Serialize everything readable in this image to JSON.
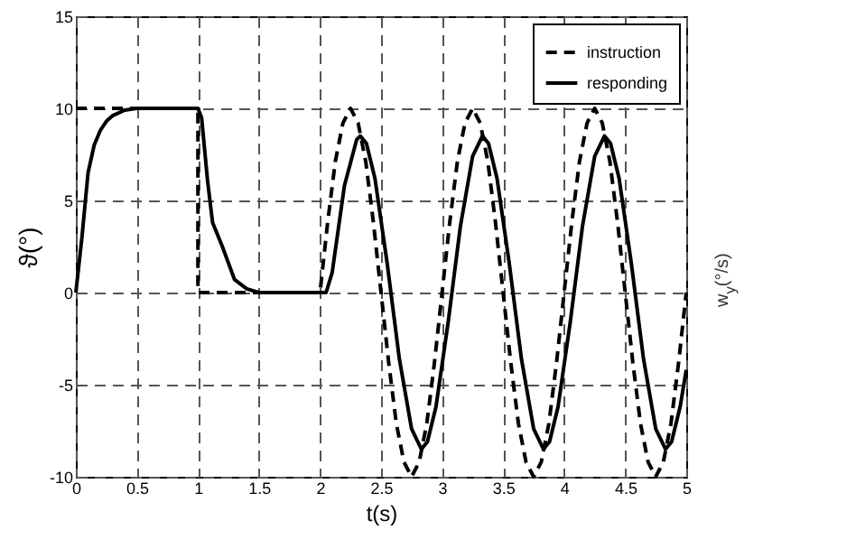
{
  "chart_data": {
    "type": "line",
    "xlabel": "t(s)",
    "ylabel": "ϑ(°)",
    "annotations": [
      "w$_{y}$(°/s)"
    ],
    "xlim": [
      0,
      5
    ],
    "xticks": [
      0,
      0.5,
      1,
      1.5,
      2,
      2.5,
      3,
      3.5,
      4,
      4.5,
      5
    ],
    "ylim": [
      -10,
      15
    ],
    "yticks": [
      -10,
      -5,
      0,
      5,
      10,
      15
    ],
    "grid": true,
    "legend": "top right",
    "marker": "none",
    "series": [
      {
        "name": "instruction",
        "color": "#000000",
        "line_style": "dashed",
        "x": [
          0,
          1,
          1,
          2,
          2.0625,
          2.125,
          2.1875,
          2.25,
          2.3125,
          2.375,
          2.4375,
          2.5,
          2.5625,
          2.625,
          2.6875,
          2.75,
          2.8125,
          2.875,
          2.9375,
          3,
          3.0625,
          3.125,
          3.1875,
          3.25,
          3.3125,
          3.375,
          3.4375,
          3.5,
          3.5625,
          3.625,
          3.6875,
          3.75,
          3.8125,
          3.875,
          3.9375,
          4,
          4.0625,
          4.125,
          4.1875,
          4.25,
          4.3125,
          4.375,
          4.4375,
          4.5,
          4.5625,
          4.625,
          4.6875,
          4.75,
          4.8125,
          4.875,
          4.9375,
          5
        ],
        "values": [
          10,
          10,
          0,
          0,
          3.8,
          7.1,
          9.2,
          10,
          9.2,
          7.1,
          3.8,
          0,
          -3.8,
          -7.1,
          -9.2,
          -10,
          -9.2,
          -7.1,
          -3.8,
          0,
          3.8,
          7.1,
          9.2,
          10,
          9.2,
          7.1,
          3.8,
          0,
          -3.8,
          -7.1,
          -9.2,
          -10,
          -9.2,
          -7.1,
          -3.8,
          0,
          3.8,
          7.1,
          9.2,
          10,
          9.2,
          7.1,
          3.8,
          0,
          -3.8,
          -7.1,
          -9.2,
          -10,
          -9.2,
          -7.1,
          -3.8,
          0
        ]
      },
      {
        "name": "responding",
        "color": "#000000",
        "line_style": "solid",
        "x": [
          0,
          0.05,
          0.1,
          0.15,
          0.2,
          0.25,
          0.3,
          0.4,
          0.5,
          0.6,
          0.7,
          0.8,
          0.9,
          1.0,
          1.03,
          1.08,
          1.12,
          1.2,
          1.3,
          1.4,
          1.5,
          1.6,
          1.7,
          1.8,
          1.9,
          2.0,
          2.05,
          2.1,
          2.2,
          2.3,
          2.33,
          2.38,
          2.45,
          2.55,
          2.65,
          2.75,
          2.83,
          2.88,
          2.95,
          3.05,
          3.15,
          3.25,
          3.33,
          3.38,
          3.45,
          3.55,
          3.65,
          3.75,
          3.83,
          3.88,
          3.95,
          4.05,
          4.15,
          4.25,
          4.33,
          4.38,
          4.45,
          4.55,
          4.65,
          4.75,
          4.83,
          4.88,
          4.95,
          5.0
        ],
        "values": [
          0,
          3,
          6.5,
          8,
          8.8,
          9.3,
          9.6,
          9.9,
          10,
          10,
          10,
          10,
          10,
          10,
          9.5,
          6,
          3.8,
          2.5,
          0.7,
          0.2,
          0,
          0,
          0,
          0,
          0,
          0,
          0,
          1.1,
          5.8,
          8.3,
          8.5,
          8.1,
          6.2,
          1.6,
          -3.6,
          -7.4,
          -8.5,
          -8.1,
          -6.2,
          -1.6,
          3.6,
          7.4,
          8.5,
          8.1,
          6.2,
          1.6,
          -3.6,
          -7.4,
          -8.5,
          -8.1,
          -6.2,
          -1.6,
          3.6,
          7.4,
          8.5,
          8.1,
          6.2,
          1.6,
          -3.6,
          -7.4,
          -8.5,
          -8.1,
          -6.2,
          -4.2
        ]
      }
    ]
  }
}
